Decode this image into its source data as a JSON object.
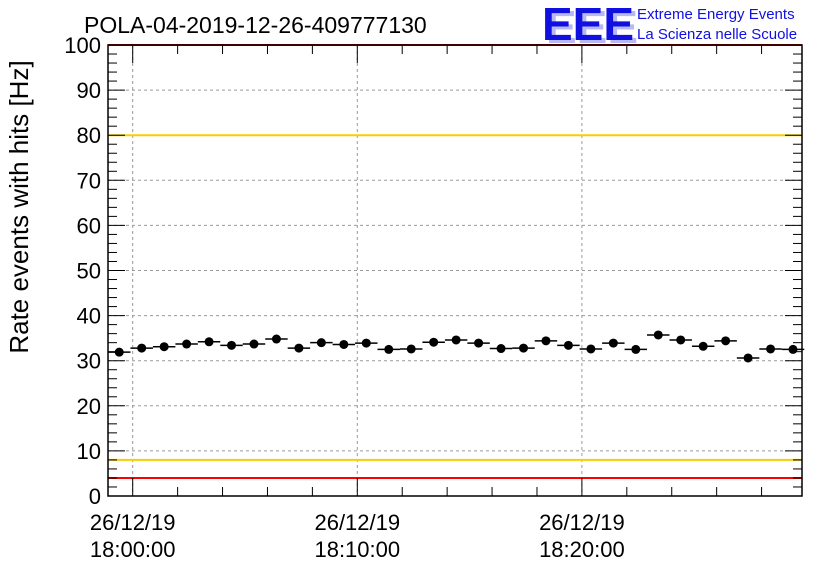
{
  "chart_data": {
    "type": "scatter",
    "title": "POLA-04-2019-12-26-409777130",
    "ylabel": "Rate events with hits [Hz]",
    "xlabel": "",
    "ylim": [
      0,
      100
    ],
    "y_ticks": [
      0,
      10,
      20,
      30,
      40,
      50,
      60,
      70,
      80,
      90,
      100
    ],
    "x_range_minutes": [
      -1.1,
      29.8
    ],
    "x_tick_minutes": [
      0,
      10,
      20
    ],
    "x_tick_labels": [
      {
        "date": "26/12/19",
        "time": "18:00:00"
      },
      {
        "date": "26/12/19",
        "time": "18:10:00"
      },
      {
        "date": "26/12/19",
        "time": "18:20:00"
      }
    ],
    "bin_width_minutes": 1,
    "reference_lines": [
      {
        "y": 100,
        "color": "#ff0000"
      },
      {
        "y": 80,
        "color": "#f5d000"
      },
      {
        "y": 8,
        "color": "#f5d000"
      },
      {
        "y": 4,
        "color": "#ff0000"
      }
    ],
    "grid": true,
    "series": [
      {
        "x": [
          -0.6,
          0.4,
          1.4,
          2.4,
          3.4,
          4.4,
          5.4,
          6.4,
          7.4,
          8.4,
          9.4,
          10.4,
          11.4,
          12.4,
          13.4,
          14.4,
          15.4,
          16.4,
          17.4,
          18.4,
          19.4,
          20.4,
          21.4,
          22.4,
          23.4,
          24.4,
          25.4,
          26.4,
          27.4,
          28.4,
          29.4
        ],
        "y": [
          31.9,
          32.8,
          33.1,
          33.7,
          34.2,
          33.4,
          33.7,
          34.8,
          32.8,
          34.0,
          33.6,
          33.9,
          32.5,
          32.6,
          34.1,
          34.6,
          33.9,
          32.7,
          32.8,
          34.4,
          33.4,
          32.6,
          33.9,
          32.5,
          35.7,
          34.6,
          33.2,
          34.4,
          30.6,
          32.6,
          32.5
        ]
      }
    ]
  },
  "logo": {
    "text": "EEE",
    "line1": "Extreme Energy Events",
    "line2": "La Scienza nelle Scuole",
    "color": "#1010e0"
  }
}
